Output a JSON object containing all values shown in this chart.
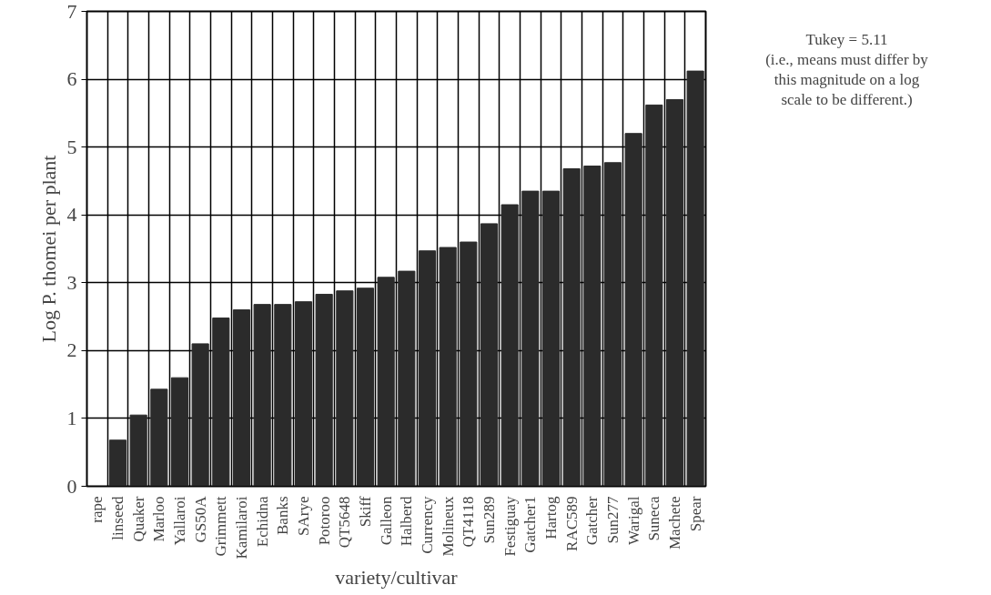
{
  "chart_data": {
    "type": "bar",
    "xlabel": "variety/cultivar",
    "ylabel": "Log P. thomei per plant",
    "categories": [
      "rape",
      "linseed",
      "Quaker",
      "Marloo",
      "Yallaroi",
      "GS50A",
      "Grimmett",
      "Kamilaroi",
      "Echidna",
      "Banks",
      "SArye",
      "Potoroo",
      "QT5648",
      "Skiff",
      "Galleon",
      "Halberd",
      "Currency",
      "Molineux",
      "QT4118",
      "Sun289",
      "Festiguay",
      "Gatcher1",
      "Hartog",
      "RAC589",
      "Gatcher",
      "Sun277",
      "Warigal",
      "Suneca",
      "Machete",
      "Spear"
    ],
    "values": [
      0,
      0.68,
      1.05,
      1.43,
      1.6,
      2.1,
      2.48,
      2.6,
      2.68,
      2.68,
      2.72,
      2.83,
      2.88,
      2.92,
      3.08,
      3.17,
      3.47,
      3.52,
      3.6,
      3.87,
      4.15,
      4.35,
      4.35,
      4.68,
      4.72,
      4.77,
      5.2,
      5.62,
      5.7,
      6.12
    ],
    "color": "#2b2b2b",
    "ylim": [
      0,
      7
    ],
    "yticks": [
      0,
      1,
      2,
      3,
      4,
      5,
      6,
      7
    ],
    "grid": true,
    "annotations": [
      "Tukey = 5.11",
      "(i.e., means must differ by",
      "this magnitude on a log",
      "scale to be different.)"
    ]
  }
}
